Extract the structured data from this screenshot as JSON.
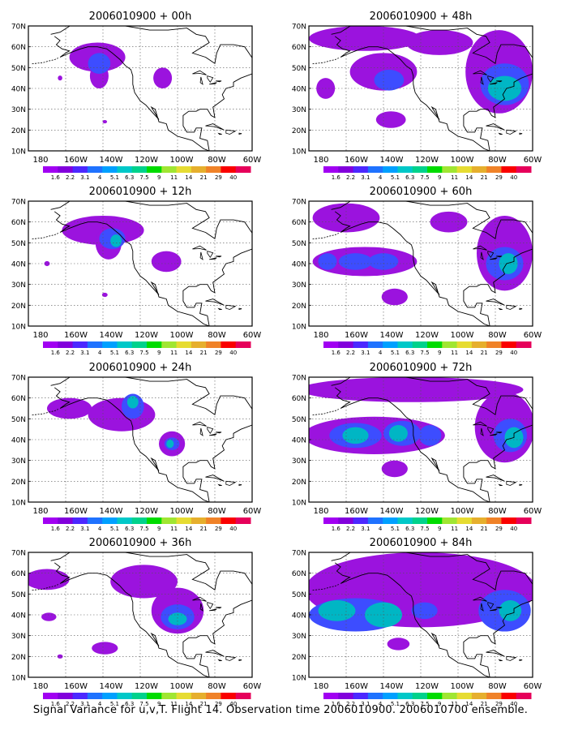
{
  "caption": "Signal Variance for u,v,T. Flight 14. Observation time 2006010900. 2006010700 ensemble.",
  "colorbar": {
    "labels": [
      "1.6",
      "2.2",
      "3.1",
      "4",
      "5.1",
      "6.3",
      "7.5",
      "9",
      "11",
      "14",
      "21",
      "29",
      "40"
    ],
    "colors": [
      "#a100f2",
      "#8200dc",
      "#4c28ff",
      "#1f72ff",
      "#00a0ff",
      "#00c8c8",
      "#00d28c",
      "#00dc00",
      "#a0e632",
      "#e6dc32",
      "#e6af2d",
      "#f08228",
      "#fa0000",
      "#e6005a"
    ]
  },
  "axes": {
    "lat_labels": [
      "70N",
      "60N",
      "50N",
      "40N",
      "30N",
      "20N",
      "10N"
    ],
    "lon_labels": [
      "180",
      "160W",
      "140W",
      "120W",
      "100W",
      "80W",
      "60W"
    ]
  },
  "panels": [
    {
      "title": "2006010900 + 00h",
      "blobs": [
        {
          "lon": -143,
          "lat": 55,
          "rlon": 15,
          "rlat": 7,
          "level": 1
        },
        {
          "lon": -142,
          "lat": 46,
          "rlon": 5,
          "rlat": 6,
          "level": 1
        },
        {
          "lon": -142,
          "lat": 52,
          "rlon": 6,
          "rlat": 5,
          "level": 2
        },
        {
          "lon": -108,
          "lat": 45,
          "rlon": 5,
          "rlat": 5,
          "level": 1
        },
        {
          "lon": -163,
          "lat": 45,
          "rlon": 1.2,
          "rlat": 1.2,
          "level": 1
        },
        {
          "lon": -139,
          "lat": 24,
          "rlon": 1.2,
          "rlat": 0.8,
          "level": 1
        }
      ]
    },
    {
      "title": "2006010900 + 48h",
      "blobs": [
        {
          "lon": -150,
          "lat": 64,
          "rlon": 30,
          "rlat": 6,
          "level": 1
        },
        {
          "lon": -110,
          "lat": 62,
          "rlon": 18,
          "rlat": 6,
          "level": 1
        },
        {
          "lon": -78,
          "lat": 48,
          "rlon": 18,
          "rlat": 20,
          "level": 1
        },
        {
          "lon": -75,
          "lat": 42,
          "rlon": 13,
          "rlat": 10,
          "level": 2
        },
        {
          "lon": -75,
          "lat": 40,
          "rlon": 9,
          "rlat": 6,
          "level": 3
        },
        {
          "lon": -140,
          "lat": 48,
          "rlon": 18,
          "rlat": 9,
          "level": 1
        },
        {
          "lon": -137,
          "lat": 44,
          "rlon": 8,
          "rlat": 5,
          "level": 2
        },
        {
          "lon": -171,
          "lat": 40,
          "rlon": 5,
          "rlat": 5,
          "level": 1
        },
        {
          "lon": -136,
          "lat": 25,
          "rlon": 8,
          "rlat": 4,
          "level": 1
        }
      ]
    },
    {
      "title": "2006010900 + 12h",
      "blobs": [
        {
          "lon": -140,
          "lat": 56,
          "rlon": 22,
          "rlat": 7,
          "level": 1
        },
        {
          "lon": -137,
          "lat": 50,
          "rlon": 7,
          "rlat": 8,
          "level": 1
        },
        {
          "lon": -135,
          "lat": 52,
          "rlon": 7,
          "rlat": 5,
          "level": 2
        },
        {
          "lon": -133,
          "lat": 51,
          "rlon": 3,
          "rlat": 3,
          "level": 3
        },
        {
          "lon": -106,
          "lat": 41,
          "rlon": 8,
          "rlat": 5,
          "level": 1
        },
        {
          "lon": -170,
          "lat": 40,
          "rlon": 1.5,
          "rlat": 1.2,
          "level": 1
        },
        {
          "lon": -139,
          "lat": 25,
          "rlon": 1.5,
          "rlat": 1,
          "level": 1
        }
      ]
    },
    {
      "title": "2006010900 + 60h",
      "blobs": [
        {
          "lon": -160,
          "lat": 62,
          "rlon": 18,
          "rlat": 7,
          "level": 1
        },
        {
          "lon": -105,
          "lat": 60,
          "rlon": 10,
          "rlat": 5,
          "level": 1
        },
        {
          "lon": -150,
          "lat": 41,
          "rlon": 28,
          "rlat": 7,
          "level": 1
        },
        {
          "lon": -155,
          "lat": 41,
          "rlon": 9,
          "rlat": 4,
          "level": 2
        },
        {
          "lon": -140,
          "lat": 41,
          "rlon": 8,
          "rlat": 4,
          "level": 2
        },
        {
          "lon": -170,
          "lat": 41,
          "rlon": 5,
          "rlat": 4,
          "level": 2
        },
        {
          "lon": -75,
          "lat": 45,
          "rlon": 15,
          "rlat": 18,
          "level": 1
        },
        {
          "lon": -75,
          "lat": 40,
          "rlon": 10,
          "rlat": 8,
          "level": 2
        },
        {
          "lon": -73,
          "lat": 40,
          "rlon": 5,
          "rlat": 5,
          "level": 3
        },
        {
          "lon": -134,
          "lat": 24,
          "rlon": 7,
          "rlat": 4,
          "level": 1
        }
      ]
    },
    {
      "title": "2006010900 + 24h",
      "blobs": [
        {
          "lon": -158,
          "lat": 55,
          "rlon": 12,
          "rlat": 5,
          "level": 1
        },
        {
          "lon": -130,
          "lat": 52,
          "rlon": 18,
          "rlat": 8,
          "level": 1
        },
        {
          "lon": -124,
          "lat": 56,
          "rlon": 6,
          "rlat": 6,
          "level": 2
        },
        {
          "lon": -124,
          "lat": 58,
          "rlon": 3,
          "rlat": 3,
          "level": 3
        },
        {
          "lon": -103,
          "lat": 38,
          "rlon": 7,
          "rlat": 6,
          "level": 1
        },
        {
          "lon": -103,
          "lat": 38,
          "rlon": 4,
          "rlat": 3,
          "level": 2
        },
        {
          "lon": -104,
          "lat": 38,
          "rlon": 2,
          "rlat": 2,
          "level": 3
        }
      ]
    },
    {
      "title": "2006010900 + 72h",
      "blobs": [
        {
          "lon": -125,
          "lat": 64,
          "rlon": 60,
          "rlat": 6,
          "level": 1
        },
        {
          "lon": -145,
          "lat": 42,
          "rlon": 38,
          "rlat": 9,
          "level": 1
        },
        {
          "lon": -155,
          "lat": 42,
          "rlon": 14,
          "rlat": 6,
          "level": 2
        },
        {
          "lon": -130,
          "lat": 43,
          "rlon": 10,
          "rlat": 6,
          "level": 2
        },
        {
          "lon": -155,
          "lat": 42,
          "rlon": 7,
          "rlat": 4,
          "level": 3
        },
        {
          "lon": -132,
          "lat": 43,
          "rlon": 5,
          "rlat": 4,
          "level": 3
        },
        {
          "lon": -115,
          "lat": 42,
          "rlon": 6,
          "rlat": 5,
          "level": 2
        },
        {
          "lon": -75,
          "lat": 46,
          "rlon": 16,
          "rlat": 17,
          "level": 1
        },
        {
          "lon": -72,
          "lat": 42,
          "rlon": 9,
          "rlat": 8,
          "level": 2
        },
        {
          "lon": -70,
          "lat": 41,
          "rlon": 5,
          "rlat": 5,
          "level": 3
        },
        {
          "lon": -134,
          "lat": 26,
          "rlon": 7,
          "rlat": 4,
          "level": 1
        }
      ]
    },
    {
      "title": "2006010900 + 36h",
      "blobs": [
        {
          "lon": -170,
          "lat": 57,
          "rlon": 12,
          "rlat": 5,
          "level": 1
        },
        {
          "lon": -118,
          "lat": 56,
          "rlon": 18,
          "rlat": 8,
          "level": 1
        },
        {
          "lon": -100,
          "lat": 42,
          "rlon": 14,
          "rlat": 11,
          "level": 1
        },
        {
          "lon": -100,
          "lat": 39,
          "rlon": 9,
          "rlat": 6,
          "level": 2
        },
        {
          "lon": -100,
          "lat": 38,
          "rlon": 5,
          "rlat": 3,
          "level": 3
        },
        {
          "lon": -169,
          "lat": 39,
          "rlon": 4,
          "rlat": 2,
          "level": 1
        },
        {
          "lon": -139,
          "lat": 24,
          "rlon": 7,
          "rlat": 3,
          "level": 1
        },
        {
          "lon": -163,
          "lat": 20,
          "rlon": 1.5,
          "rlat": 1,
          "level": 1
        }
      ]
    },
    {
      "title": "2006010900 + 84h",
      "blobs": [
        {
          "lon": -120,
          "lat": 52,
          "rlon": 62,
          "rlat": 18,
          "level": 1
        },
        {
          "lon": -155,
          "lat": 40,
          "rlon": 25,
          "rlat": 8,
          "level": 2
        },
        {
          "lon": -165,
          "lat": 42,
          "rlon": 10,
          "rlat": 5,
          "level": 3
        },
        {
          "lon": -140,
          "lat": 40,
          "rlon": 10,
          "rlat": 6,
          "level": 3
        },
        {
          "lon": -118,
          "lat": 42,
          "rlon": 7,
          "rlat": 4,
          "level": 2
        },
        {
          "lon": -75,
          "lat": 42,
          "rlon": 14,
          "rlat": 10,
          "level": 2
        },
        {
          "lon": -72,
          "lat": 42,
          "rlon": 6,
          "rlat": 5,
          "level": 3
        },
        {
          "lon": -132,
          "lat": 26,
          "rlon": 6,
          "rlat": 3,
          "level": 1
        }
      ]
    }
  ]
}
